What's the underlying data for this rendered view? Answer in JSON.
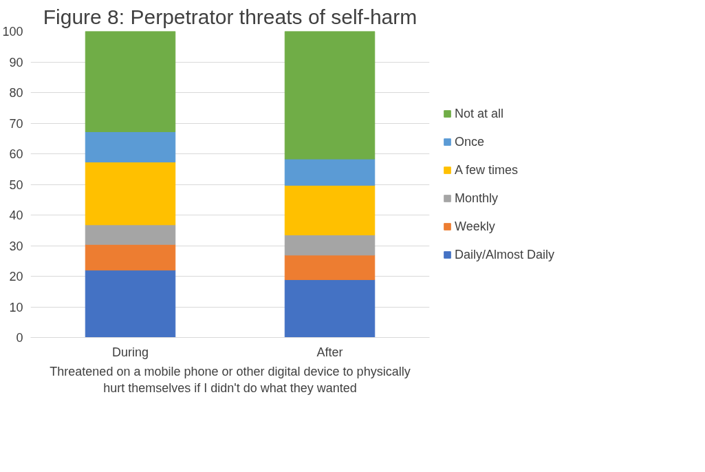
{
  "chart_data": {
    "type": "bar",
    "stacked": true,
    "title": "Figure 8: Perpetrator threats of self-harm",
    "xlabel": "Threatened on a mobile phone or other digital device to physically\nhurt themselves if I didn't do what they wanted",
    "categories": [
      "During",
      "After"
    ],
    "series": [
      {
        "name": "Daily/Almost Daily",
        "color": "#4472c4",
        "values": [
          22.0,
          18.9
        ]
      },
      {
        "name": "Weekly",
        "color": "#ed7d31",
        "values": [
          8.4,
          8.0
        ]
      },
      {
        "name": "Monthly",
        "color": "#a5a5a5",
        "values": [
          6.4,
          6.6
        ]
      },
      {
        "name": "A few times",
        "color": "#ffc000",
        "values": [
          20.5,
          16.2
        ]
      },
      {
        "name": "Once",
        "color": "#5b9bd5",
        "values": [
          9.9,
          8.6
        ]
      },
      {
        "name": "Not at all",
        "color": "#70ad47",
        "values": [
          32.8,
          41.7
        ]
      }
    ],
    "ylim": [
      0,
      100
    ],
    "yticks": [
      0,
      10,
      20,
      30,
      40,
      50,
      60,
      70,
      80,
      90,
      100
    ],
    "grid": "y",
    "legend": "right"
  }
}
